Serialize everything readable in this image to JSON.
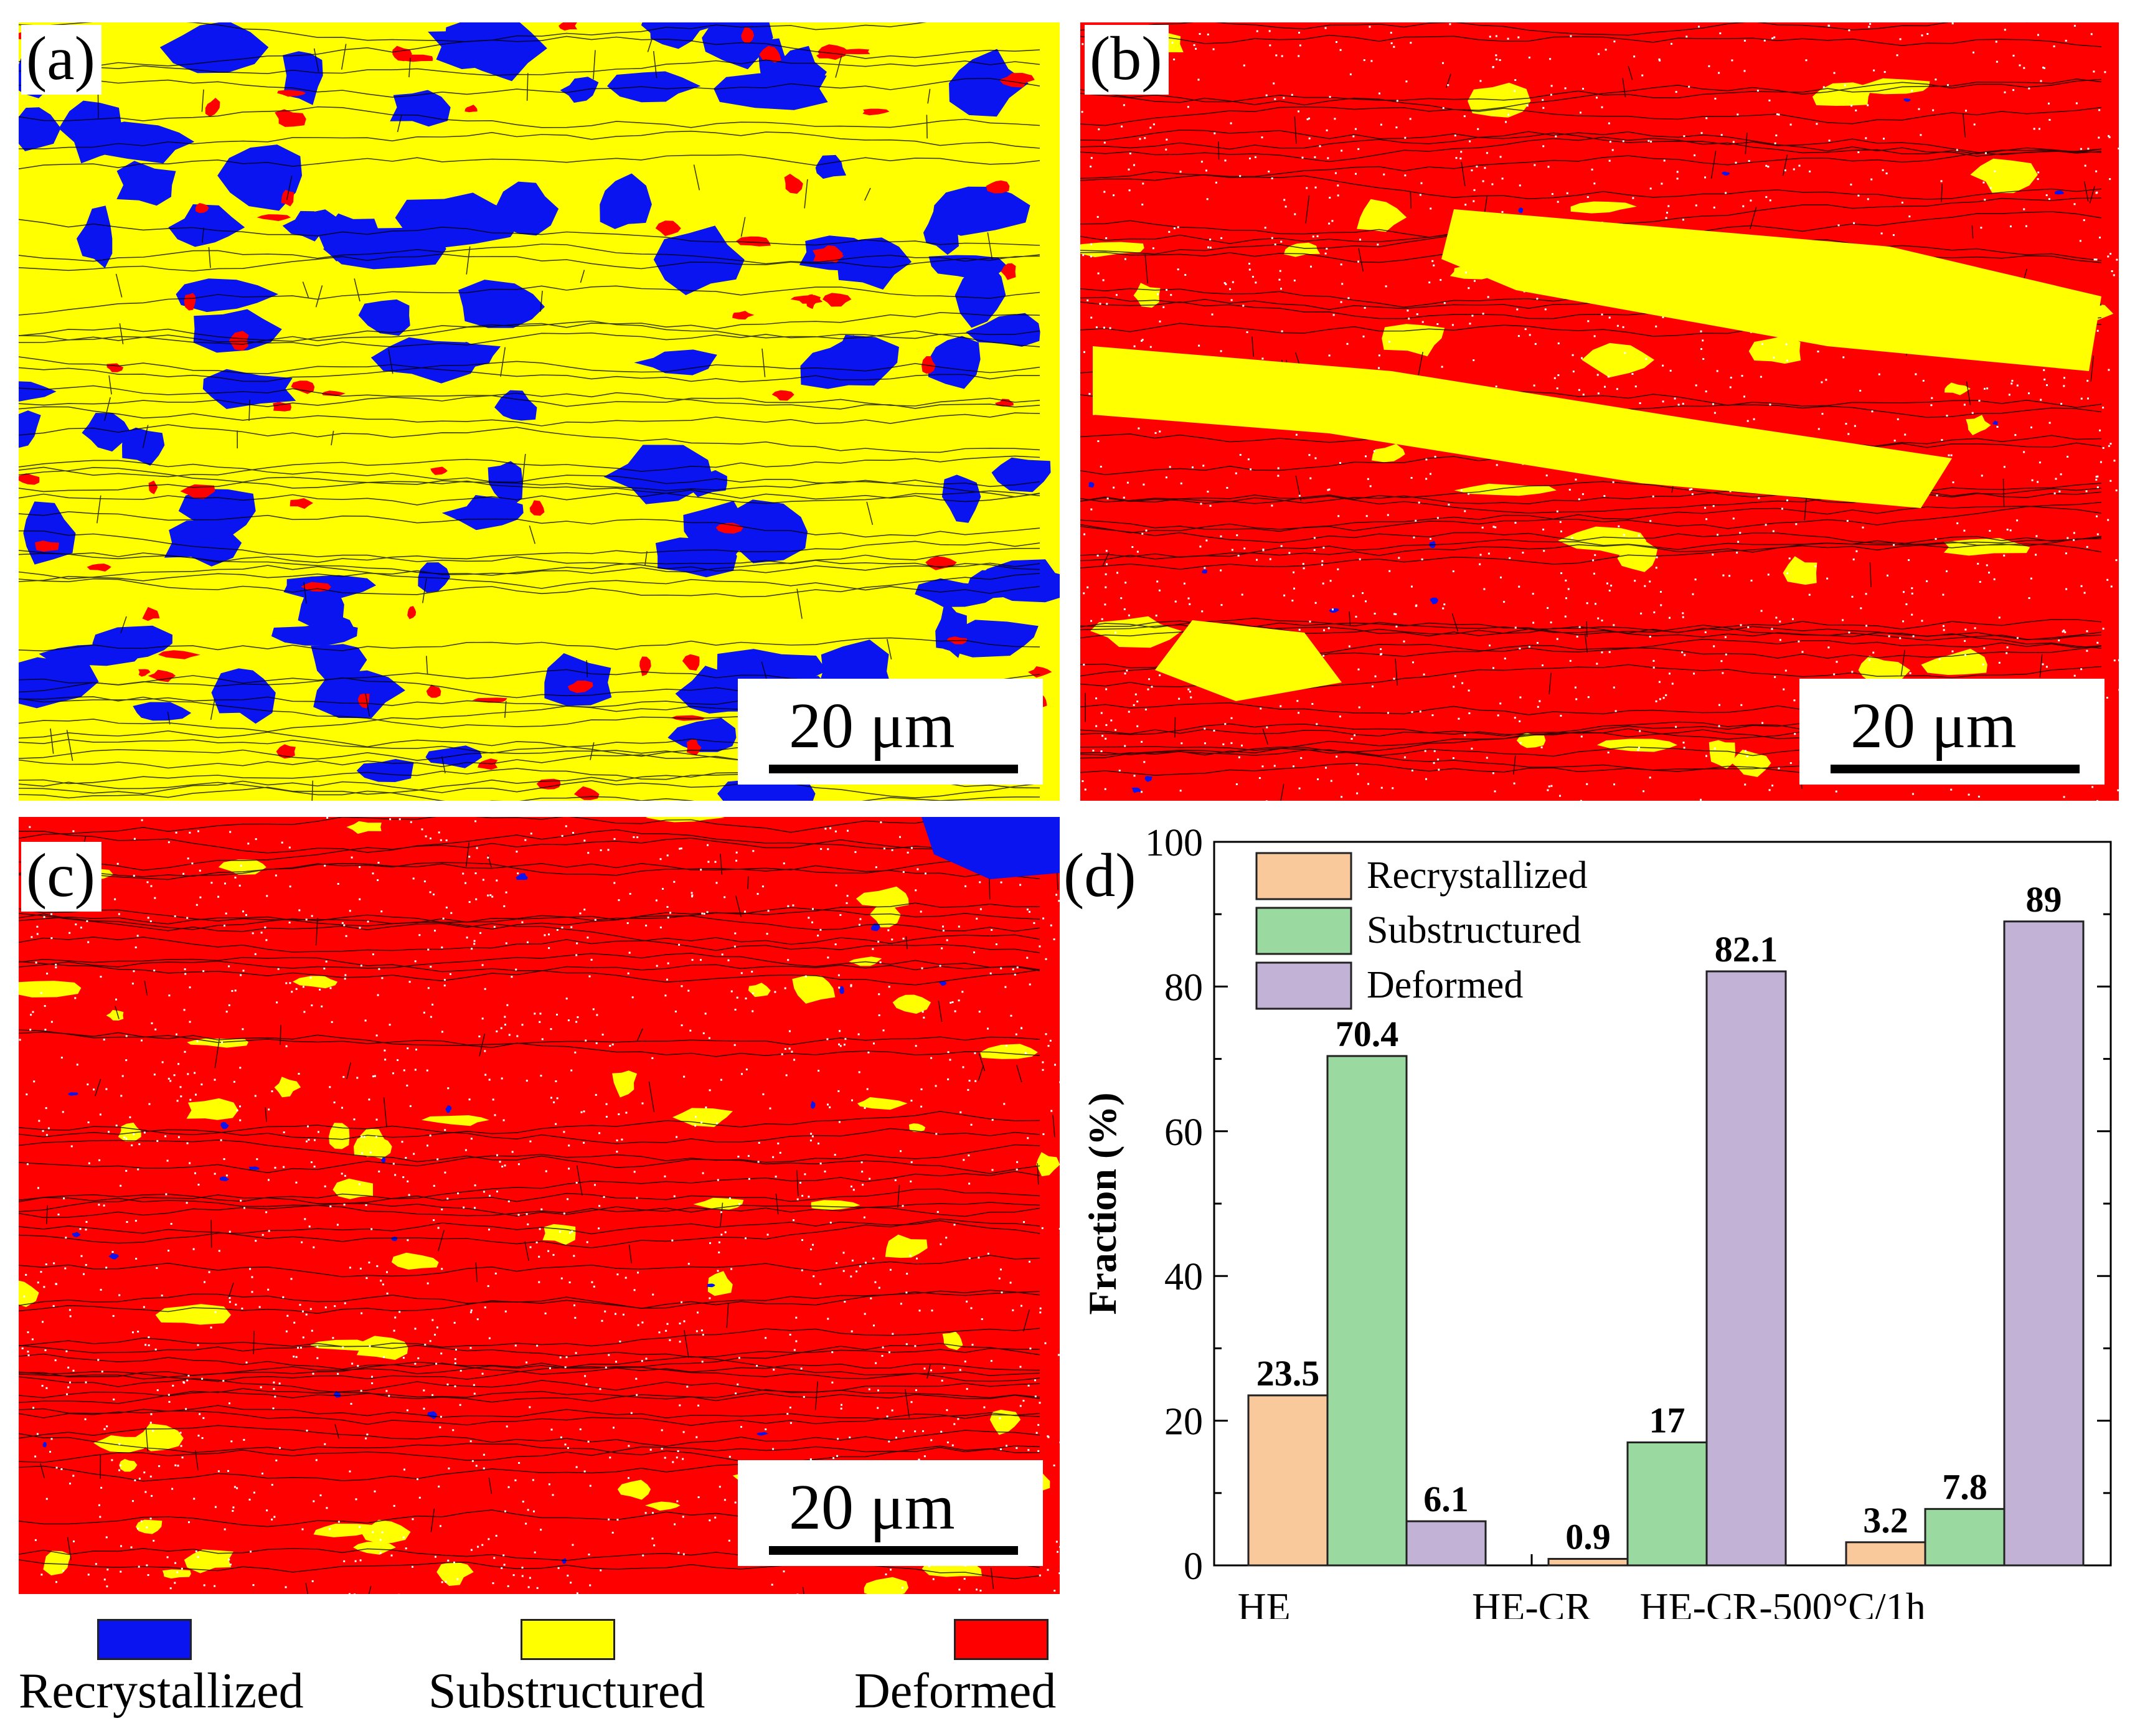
{
  "panels": [
    {
      "label": "(a)",
      "scale": "20 μm",
      "dominant": "Substructured"
    },
    {
      "label": "(b)",
      "scale": "20 μm",
      "dominant": "Deformed"
    },
    {
      "label": "(c)",
      "scale": "20 μm",
      "dominant": "Deformed"
    }
  ],
  "map_legend": [
    {
      "label": "Recrystallized",
      "color": "#0a14f0"
    },
    {
      "label": "Substructured",
      "color": "#ffff00"
    },
    {
      "label": "Deformed",
      "color": "#ff0000"
    }
  ],
  "colors": {
    "blue": "#0a14f0",
    "yellow": "#ffff00",
    "red": "#ff0000"
  },
  "chart_label": "(d)",
  "chart_data": {
    "type": "bar",
    "title": "",
    "xlabel": "",
    "ylabel": "Fraction (%)",
    "ylim": [
      0,
      100
    ],
    "yticks": [
      0,
      20,
      40,
      60,
      80,
      100
    ],
    "categories": [
      "HE",
      "HE-CR",
      "HE-CR-500°C/1h"
    ],
    "series": [
      {
        "name": "Recrystallized",
        "color": "#f9c89b",
        "values": [
          23.5,
          0.9,
          3.2
        ],
        "labels": [
          "23.5",
          "0.9",
          "3.2"
        ]
      },
      {
        "name": "Substructured",
        "color": "#9ad99f",
        "values": [
          70.4,
          17,
          7.8
        ],
        "labels": [
          "70.4",
          "17",
          "7.8"
        ]
      },
      {
        "name": "Deformed",
        "color": "#c1b2d6",
        "values": [
          6.1,
          82.1,
          89
        ],
        "labels": [
          "6.1",
          "82.1",
          "89"
        ]
      }
    ],
    "legend_position": "top-left"
  }
}
